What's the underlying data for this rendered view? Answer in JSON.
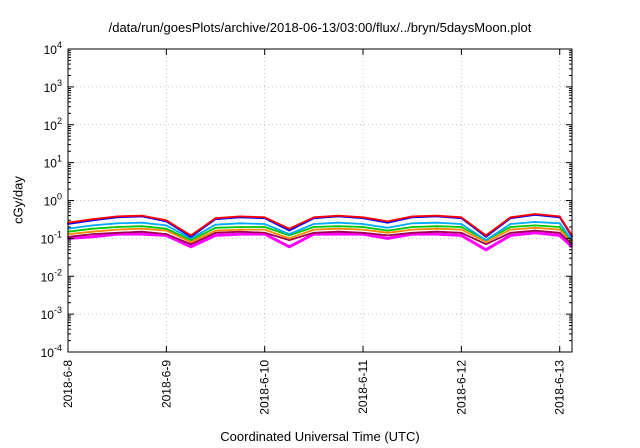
{
  "chart_data": {
    "type": "line",
    "title": "/data/run/goesPlots/archive/2018-06-13/03:00/flux/../bryn/5daysMoon.plot",
    "xlabel": "Coordinated Universal Time (UTC)",
    "ylabel": "cGy/day",
    "yscale": "log",
    "ylim": [
      0.0001,
      10000
    ],
    "xlim": [
      "2018-6-8",
      "2018-6-13 03:00"
    ],
    "grid": true,
    "x_ticks": [
      "2018-6-8",
      "2018-6-9",
      "2018-6-10",
      "2018-6-11",
      "2018-6-12",
      "2018-6-13"
    ],
    "y_ticks": [
      {
        "value": 0.0001,
        "base": "10",
        "exp": "-4"
      },
      {
        "value": 0.001,
        "base": "10",
        "exp": "-3"
      },
      {
        "value": 0.01,
        "base": "10",
        "exp": "-2"
      },
      {
        "value": 0.1,
        "base": "10",
        "exp": "-1"
      },
      {
        "value": 1,
        "base": "10",
        "exp": "0"
      },
      {
        "value": 10,
        "base": "10",
        "exp": "1"
      },
      {
        "value": 100,
        "base": "10",
        "exp": "2"
      },
      {
        "value": 1000,
        "base": "10",
        "exp": "3"
      },
      {
        "value": 10000,
        "base": "10",
        "exp": "4"
      }
    ],
    "x": [
      "2018-6-8 00:00",
      "2018-6-8 06:00",
      "2018-6-8 12:00",
      "2018-6-8 18:00",
      "2018-6-9 00:00",
      "2018-6-9 06:00",
      "2018-6-9 12:00",
      "2018-6-9 18:00",
      "2018-6-10 00:00",
      "2018-6-10 06:00",
      "2018-6-10 12:00",
      "2018-6-10 18:00",
      "2018-6-11 00:00",
      "2018-6-11 06:00",
      "2018-6-11 12:00",
      "2018-6-11 18:00",
      "2018-6-12 00:00",
      "2018-6-12 06:00",
      "2018-6-12 12:00",
      "2018-6-12 18:00",
      "2018-6-13 00:00",
      "2018-6-13 03:00"
    ],
    "series": [
      {
        "color": "#ff0000",
        "values": [
          0.26,
          0.32,
          0.38,
          0.4,
          0.3,
          0.12,
          0.34,
          0.38,
          0.36,
          0.18,
          0.36,
          0.4,
          0.36,
          0.28,
          0.38,
          0.4,
          0.36,
          0.12,
          0.36,
          0.44,
          0.38,
          0.12
        ]
      },
      {
        "color": "#0000ff",
        "values": [
          0.24,
          0.3,
          0.36,
          0.38,
          0.28,
          0.11,
          0.32,
          0.36,
          0.34,
          0.16,
          0.34,
          0.38,
          0.34,
          0.26,
          0.36,
          0.38,
          0.34,
          0.11,
          0.34,
          0.42,
          0.36,
          0.11
        ]
      },
      {
        "color": "#00aaff",
        "values": [
          0.18,
          0.22,
          0.25,
          0.26,
          0.22,
          0.1,
          0.23,
          0.25,
          0.24,
          0.13,
          0.24,
          0.26,
          0.24,
          0.19,
          0.25,
          0.26,
          0.24,
          0.09,
          0.24,
          0.27,
          0.25,
          0.09
        ]
      },
      {
        "color": "#00c800",
        "values": [
          0.15,
          0.18,
          0.2,
          0.21,
          0.18,
          0.09,
          0.19,
          0.2,
          0.2,
          0.12,
          0.2,
          0.21,
          0.2,
          0.16,
          0.2,
          0.21,
          0.2,
          0.09,
          0.2,
          0.22,
          0.2,
          0.09
        ]
      },
      {
        "color": "#ff8800",
        "values": [
          0.13,
          0.15,
          0.17,
          0.18,
          0.16,
          0.08,
          0.16,
          0.17,
          0.17,
          0.1,
          0.17,
          0.18,
          0.17,
          0.14,
          0.17,
          0.18,
          0.17,
          0.08,
          0.17,
          0.19,
          0.17,
          0.08
        ]
      },
      {
        "color": "#a00050",
        "values": [
          0.11,
          0.13,
          0.14,
          0.15,
          0.13,
          0.07,
          0.14,
          0.15,
          0.14,
          0.09,
          0.14,
          0.15,
          0.14,
          0.12,
          0.14,
          0.15,
          0.14,
          0.07,
          0.14,
          0.16,
          0.14,
          0.07
        ]
      },
      {
        "color": "#ff00ff",
        "values": [
          0.1,
          0.11,
          0.13,
          0.13,
          0.12,
          0.06,
          0.12,
          0.13,
          0.13,
          0.06,
          0.13,
          0.13,
          0.13,
          0.1,
          0.13,
          0.13,
          0.12,
          0.05,
          0.12,
          0.14,
          0.12,
          0.06
        ]
      }
    ]
  }
}
